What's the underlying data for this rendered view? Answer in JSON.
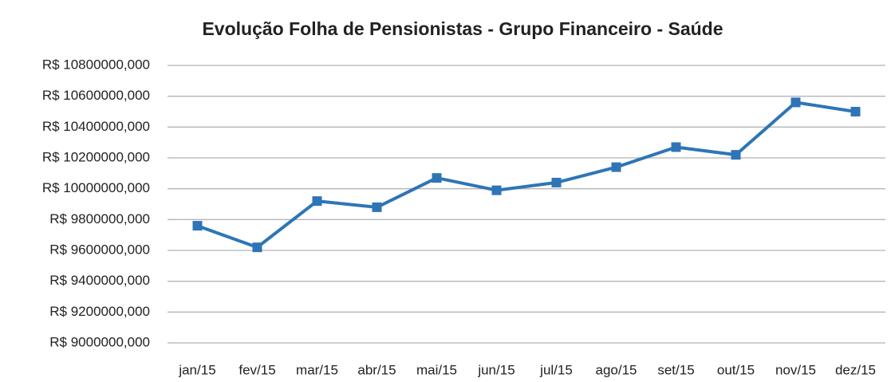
{
  "chart_data": {
    "type": "line",
    "title": "Evolução Folha de Pensionistas - Grupo Financeiro - Saúde",
    "categories": [
      "jan/15",
      "fev/15",
      "mar/15",
      "abr/15",
      "mai/15",
      "jun/15",
      "jul/15",
      "ago/15",
      "set/15",
      "out/15",
      "nov/15",
      "dez/15"
    ],
    "series": [
      {
        "name": "Pensionistas",
        "color": "#2e75b6",
        "values": [
          9760000,
          9620000,
          9920000,
          9880000,
          10070000,
          9990000,
          10040000,
          10140000,
          10270000,
          10220000,
          10560000,
          10500000
        ]
      }
    ],
    "ylim": [
      9000000,
      10800000
    ],
    "yticks": [
      {
        "value": 9000000,
        "label": "R$ 9000000,000"
      },
      {
        "value": 9200000,
        "label": "R$ 9200000,000"
      },
      {
        "value": 9400000,
        "label": "R$ 9400000,000"
      },
      {
        "value": 9600000,
        "label": "R$ 9600000,000"
      },
      {
        "value": 9800000,
        "label": "R$ 9800000,000"
      },
      {
        "value": 10000000,
        "label": "R$ 10000000,000"
      },
      {
        "value": 10200000,
        "label": "R$ 10200000,000"
      },
      {
        "value": 10400000,
        "label": "R$ 10400000,000"
      },
      {
        "value": 10600000,
        "label": "R$ 10600000,000"
      },
      {
        "value": 10800000,
        "label": "R$ 10800000,000"
      }
    ],
    "grid": true
  }
}
